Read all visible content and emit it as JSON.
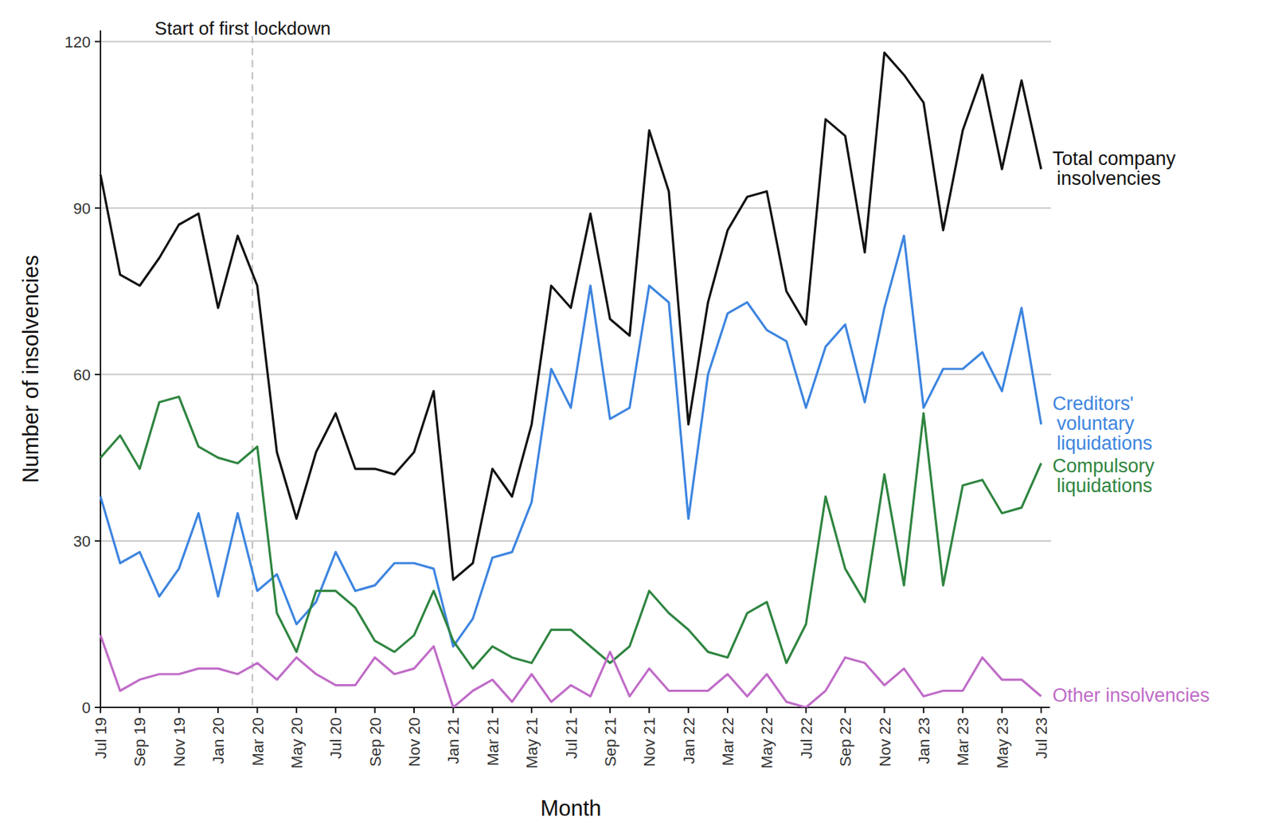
{
  "chart_data": {
    "type": "line",
    "x_label": "Month",
    "y_label": "Number of insolvencies",
    "categories": [
      "Jul 19",
      null,
      "Sep 19",
      null,
      "Nov 19",
      null,
      "Jan 20",
      null,
      "Mar 20",
      null,
      "May 20",
      null,
      "Jul 20",
      null,
      "Sep 20",
      null,
      "Nov 20",
      null,
      "Jan 21",
      null,
      "Mar 21",
      null,
      "May 21",
      null,
      "Jul 21",
      null,
      "Sep 21",
      null,
      "Nov 21",
      null,
      "Jan 22",
      null,
      "Mar 22",
      null,
      "May 22",
      null,
      "Jul 22",
      null,
      "Sep 22",
      null,
      "Nov 22",
      null,
      "Jan 23",
      null,
      "Mar 23",
      null,
      "May 23",
      null,
      "Jul 23"
    ],
    "ylim": [
      0,
      122
    ],
    "yticks": [
      0,
      30,
      60,
      90,
      120
    ],
    "grid": true,
    "annotations": [
      {
        "text": "Start of first lockdown",
        "x": 7.75
      }
    ],
    "series": [
      {
        "name": "Total company insolvencies",
        "color": "#111111",
        "values": [
          96,
          78,
          76,
          81,
          87,
          89,
          72,
          85,
          76,
          46,
          34,
          46,
          53,
          43,
          43,
          42,
          46,
          57,
          23,
          26,
          43,
          38,
          51,
          76,
          72,
          89,
          70,
          67,
          104,
          93,
          51,
          73,
          86,
          92,
          93,
          75,
          69,
          106,
          103,
          82,
          118,
          114,
          109,
          86,
          104,
          114,
          97,
          113,
          97
        ]
      },
      {
        "name": "Creditors' voluntary liquidations",
        "color": "#3d85e0",
        "values": [
          38,
          26,
          28,
          20,
          25,
          35,
          20,
          35,
          21,
          24,
          15,
          19,
          28,
          21,
          22,
          26,
          26,
          25,
          11,
          16,
          27,
          28,
          37,
          61,
          54,
          76,
          52,
          54,
          76,
          73,
          34,
          60,
          71,
          73,
          68,
          66,
          54,
          65,
          69,
          55,
          72,
          85,
          54,
          61,
          61,
          64,
          57,
          72,
          51
        ]
      },
      {
        "name": "Compulsory liquidations",
        "color": "#2f8540",
        "values": [
          45,
          49,
          43,
          55,
          56,
          47,
          45,
          44,
          47,
          17,
          10,
          21,
          21,
          18,
          12,
          10,
          13,
          21,
          12,
          7,
          11,
          9,
          8,
          14,
          14,
          11,
          8,
          11,
          21,
          17,
          14,
          10,
          9,
          17,
          19,
          8,
          15,
          38,
          25,
          19,
          42,
          22,
          53,
          22,
          40,
          41,
          35,
          36,
          44
        ]
      },
      {
        "name": "Other insolvencies",
        "color": "#c06cc8",
        "values": [
          13,
          3,
          5,
          6,
          6,
          7,
          7,
          6,
          8,
          5,
          9,
          6,
          4,
          4,
          9,
          6,
          7,
          11,
          0,
          3,
          5,
          1,
          6,
          1,
          4,
          2,
          10,
          2,
          7,
          3,
          3,
          3,
          6,
          2,
          6,
          1,
          0,
          3,
          9,
          8,
          4,
          7,
          2,
          3,
          3,
          9,
          5,
          5,
          2
        ]
      }
    ]
  }
}
